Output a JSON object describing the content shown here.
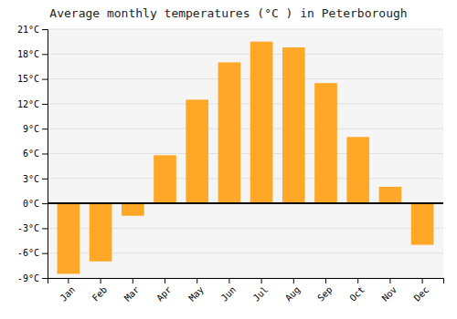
{
  "chart_data": {
    "type": "bar",
    "title": "Average monthly temperatures (°C ) in Peterborough",
    "categories": [
      "Jan",
      "Feb",
      "Mar",
      "Apr",
      "May",
      "Jun",
      "Jul",
      "Aug",
      "Sep",
      "Oct",
      "Nov",
      "Dec"
    ],
    "values": [
      -8.5,
      -7.0,
      -1.5,
      5.8,
      12.5,
      17.0,
      19.5,
      18.8,
      14.5,
      8.0,
      2.0,
      -5.0
    ],
    "color": "#FFA726",
    "ylim": [
      -9,
      21
    ],
    "yticks": [
      {
        "value": -9,
        "label": "-9°C"
      },
      {
        "value": -6,
        "label": "-6°C"
      },
      {
        "value": -3,
        "label": "-3°C"
      },
      {
        "value": 0,
        "label": "0°C"
      },
      {
        "value": 3,
        "label": "3°C"
      },
      {
        "value": 6,
        "label": "6°C"
      },
      {
        "value": 9,
        "label": "9°C"
      },
      {
        "value": 12,
        "label": "12°C"
      },
      {
        "value": 15,
        "label": "15°C"
      },
      {
        "value": 18,
        "label": "18°C"
      },
      {
        "value": 21,
        "label": "21°C"
      }
    ],
    "grid": true
  }
}
